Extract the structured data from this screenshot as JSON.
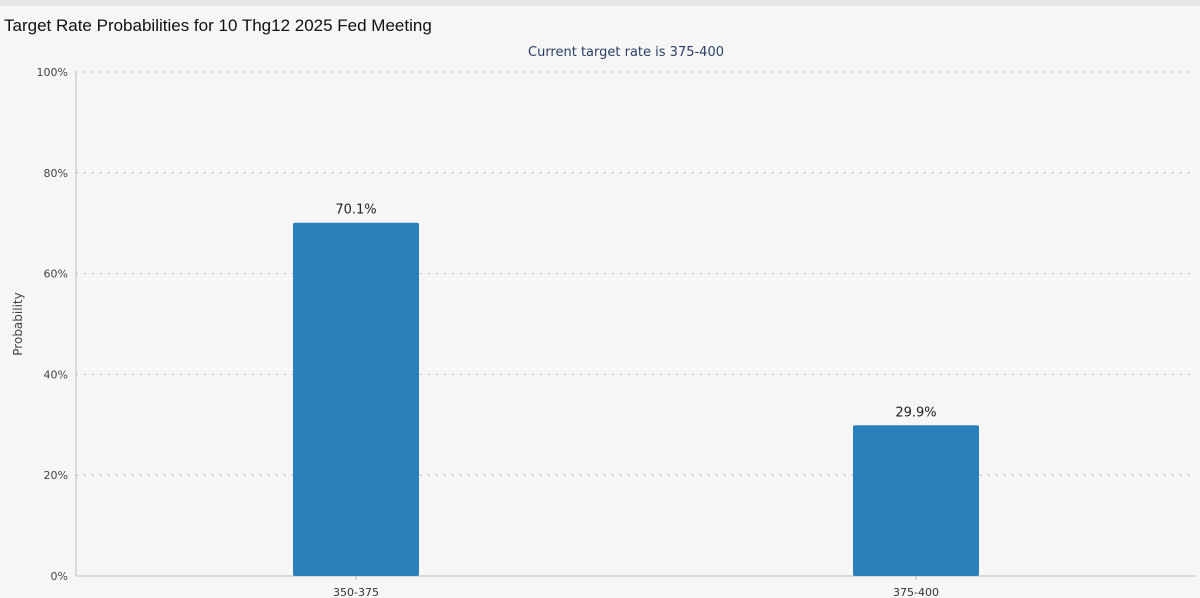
{
  "page": {
    "title": "Target Rate Probabilities for 10 Thg12 2025 Fed Meeting"
  },
  "chart_data": {
    "type": "bar",
    "title": "",
    "subtitle": "Current target rate is 375-400",
    "categories": [
      "350-375",
      "375-400"
    ],
    "values": [
      70.1,
      29.9
    ],
    "data_labels": [
      "70.1%",
      "29.9%"
    ],
    "xlabel": "",
    "ylabel": "Probability",
    "ylim": [
      0,
      100
    ],
    "yticks": [
      0,
      20,
      40,
      60,
      80,
      100
    ],
    "ytick_labels": [
      "0%",
      "20%",
      "40%",
      "60%",
      "80%",
      "100%"
    ],
    "grid": true,
    "legend": "none",
    "colors": {
      "bar": "#2a80b9",
      "grid": "#c8c8c8",
      "axis": "#bdbdbd"
    }
  }
}
